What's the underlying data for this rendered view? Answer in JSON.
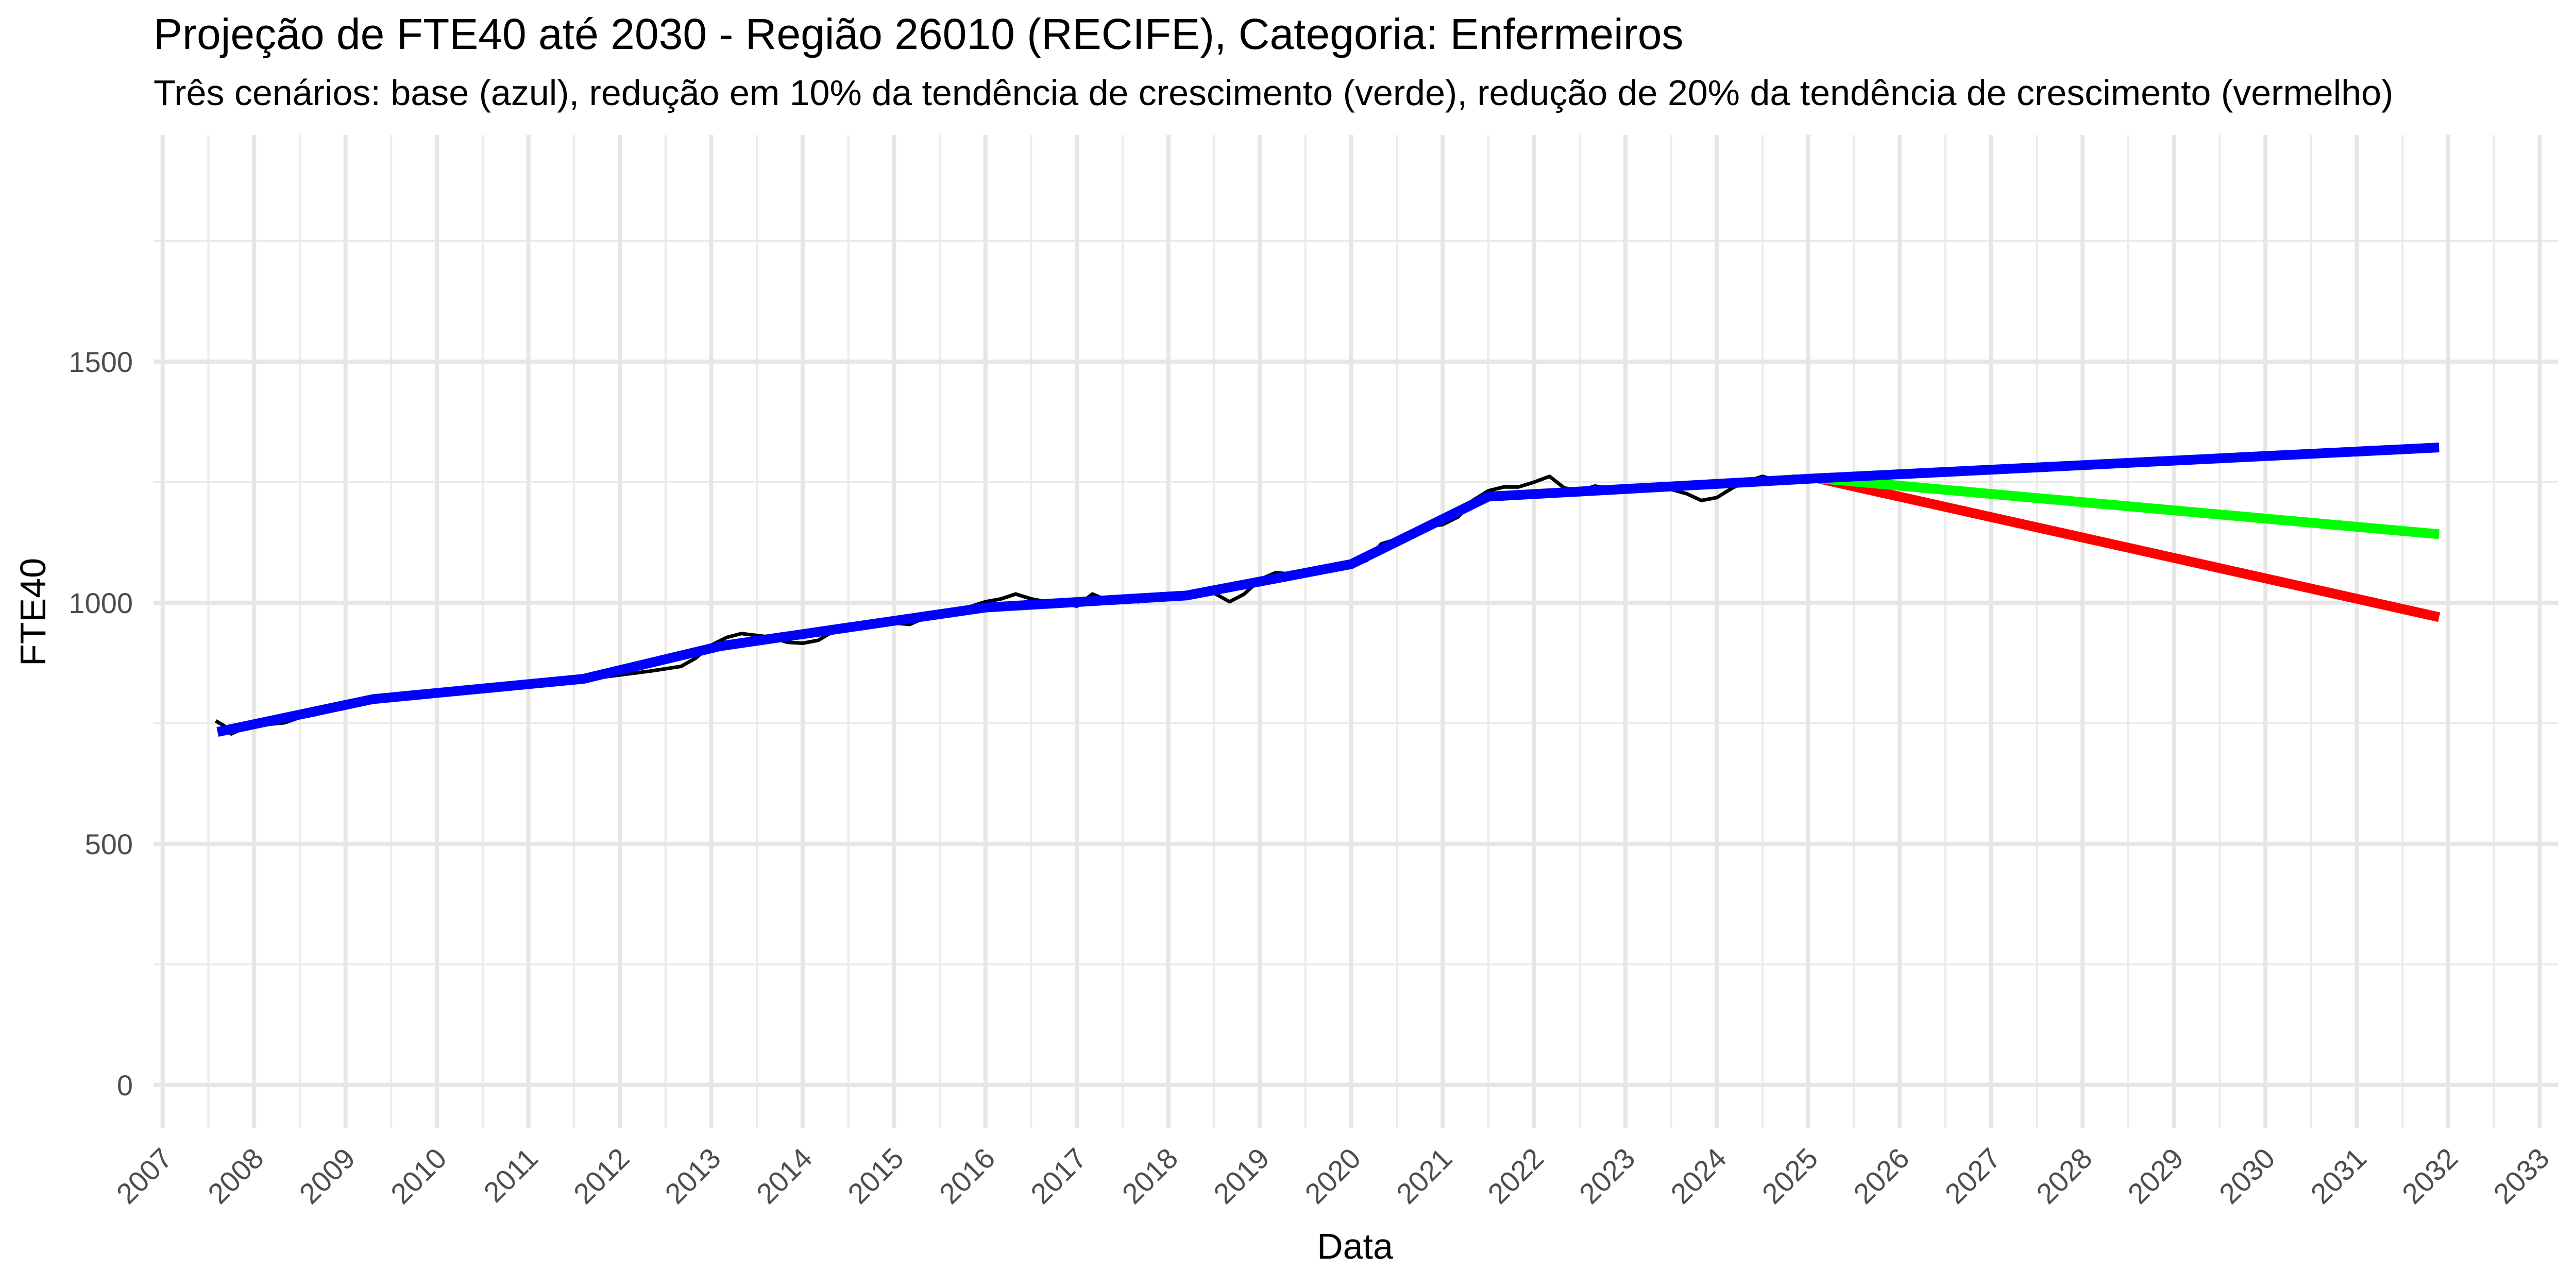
{
  "chart_data": {
    "type": "line",
    "title": "Projeção de FTE40 até 2030 - Região 26010 (RECIFE), Categoria: Enfermeiros",
    "subtitle": "Três cenários: base (azul), redução em 10% da tendência de crescimento (verde), redução de 20% da tendência de crescimento (vermelho)",
    "xlabel": "Data",
    "ylabel": "FTE40",
    "xlim": [
      2006.9,
      2033.2
    ],
    "ylim": [
      -90,
      1970
    ],
    "x_ticks": [
      2007,
      2008,
      2009,
      2010,
      2011,
      2012,
      2013,
      2014,
      2015,
      2016,
      2017,
      2018,
      2019,
      2020,
      2021,
      2022,
      2023,
      2024,
      2025,
      2026,
      2027,
      2028,
      2029,
      2030,
      2031,
      2032,
      2033
    ],
    "x_tick_labels": [
      "2007",
      "2008",
      "2009",
      "2010",
      "2011",
      "2012",
      "2013",
      "2014",
      "2015",
      "2016",
      "2017",
      "2018",
      "2019",
      "2020",
      "2021",
      "2022",
      "2023",
      "2024",
      "2025",
      "2026",
      "2027",
      "2028",
      "2029",
      "2030",
      "2031",
      "2032",
      "2033"
    ],
    "y_ticks": [
      0,
      500,
      1000,
      1500
    ],
    "y_tick_labels": [
      "0",
      "500",
      "1000",
      "1500"
    ],
    "grid": true,
    "legend": "none",
    "series": [
      {
        "color": "#000000",
        "stroke": "thin",
        "points": [
          [
            2007.58,
            755
          ],
          [
            2007.67,
            745
          ],
          [
            2007.75,
            728
          ],
          [
            2007.83,
            735
          ],
          [
            2008.0,
            742
          ],
          [
            2008.17,
            748
          ],
          [
            2008.33,
            751
          ],
          [
            2008.5,
            762
          ],
          [
            2008.67,
            768
          ],
          [
            2008.83,
            775
          ],
          [
            2009.0,
            789
          ],
          [
            2009.17,
            792
          ],
          [
            2009.33,
            800
          ],
          [
            2009.5,
            805
          ],
          [
            2009.67,
            810
          ],
          [
            2009.83,
            808
          ],
          [
            2010.0,
            813
          ],
          [
            2010.5,
            820
          ],
          [
            2011.0,
            828
          ],
          [
            2011.5,
            838
          ],
          [
            2012.0,
            850
          ],
          [
            2012.33,
            858
          ],
          [
            2012.67,
            868
          ],
          [
            2012.83,
            885
          ],
          [
            2013.0,
            912
          ],
          [
            2013.17,
            928
          ],
          [
            2013.33,
            936
          ],
          [
            2013.5,
            932
          ],
          [
            2013.67,
            928
          ],
          [
            2013.83,
            918
          ],
          [
            2014.0,
            916
          ],
          [
            2014.17,
            922
          ],
          [
            2014.33,
            940
          ],
          [
            2014.5,
            945
          ],
          [
            2014.67,
            950
          ],
          [
            2015.0,
            958
          ],
          [
            2015.17,
            955
          ],
          [
            2015.33,
            968
          ],
          [
            2015.5,
            978
          ],
          [
            2015.67,
            982
          ],
          [
            2016.0,
            1002
          ],
          [
            2016.17,
            1008
          ],
          [
            2016.33,
            1018
          ],
          [
            2016.5,
            1008
          ],
          [
            2016.67,
            1002
          ],
          [
            2016.83,
            998
          ],
          [
            2017.0,
            993
          ],
          [
            2017.17,
            1018
          ],
          [
            2017.33,
            1005
          ],
          [
            2017.5,
            1008
          ],
          [
            2017.67,
            1002
          ],
          [
            2018.0,
            1015
          ],
          [
            2018.33,
            1022
          ],
          [
            2018.5,
            1020
          ],
          [
            2018.67,
            1002
          ],
          [
            2018.83,
            1018
          ],
          [
            2019.0,
            1048
          ],
          [
            2019.17,
            1062
          ],
          [
            2019.33,
            1060
          ],
          [
            2019.5,
            1058
          ],
          [
            2019.83,
            1072
          ],
          [
            2020.0,
            1075
          ],
          [
            2020.17,
            1088
          ],
          [
            2020.33,
            1122
          ],
          [
            2020.5,
            1132
          ],
          [
            2020.67,
            1148
          ],
          [
            2020.83,
            1158
          ],
          [
            2021.0,
            1162
          ],
          [
            2021.17,
            1178
          ],
          [
            2021.33,
            1212
          ],
          [
            2021.5,
            1232
          ],
          [
            2021.67,
            1240
          ],
          [
            2021.83,
            1240
          ],
          [
            2022.0,
            1250
          ],
          [
            2022.17,
            1262
          ],
          [
            2022.33,
            1238
          ],
          [
            2022.5,
            1232
          ],
          [
            2022.67,
            1242
          ],
          [
            2022.83,
            1236
          ],
          [
            2023.0,
            1232
          ],
          [
            2023.17,
            1238
          ],
          [
            2023.33,
            1242
          ],
          [
            2023.5,
            1235
          ],
          [
            2023.67,
            1226
          ],
          [
            2023.83,
            1212
          ],
          [
            2024.0,
            1218
          ],
          [
            2024.17,
            1238
          ],
          [
            2024.33,
            1252
          ],
          [
            2024.5,
            1262
          ],
          [
            2024.67,
            1252
          ],
          [
            2024.83,
            1262
          ],
          [
            2025.0,
            1262
          ],
          [
            2025.1,
            1262
          ]
        ]
      },
      {
        "color": "#ff0000",
        "stroke": "thick",
        "points": [
          [
            2025.1,
            1258
          ],
          [
            2031.9,
            970
          ]
        ]
      },
      {
        "color": "#00ff00",
        "stroke": "thick",
        "points": [
          [
            2025.1,
            1258
          ],
          [
            2031.9,
            1142
          ]
        ]
      },
      {
        "color": "#0000ff",
        "stroke": "thick",
        "points": [
          [
            2007.6,
            732
          ],
          [
            2009.3,
            800
          ],
          [
            2011.6,
            842
          ],
          [
            2013.1,
            910
          ],
          [
            2016.0,
            990
          ],
          [
            2018.2,
            1015
          ],
          [
            2020.0,
            1080
          ],
          [
            2021.5,
            1220
          ],
          [
            2025.1,
            1258
          ],
          [
            2031.9,
            1322
          ]
        ]
      }
    ]
  }
}
